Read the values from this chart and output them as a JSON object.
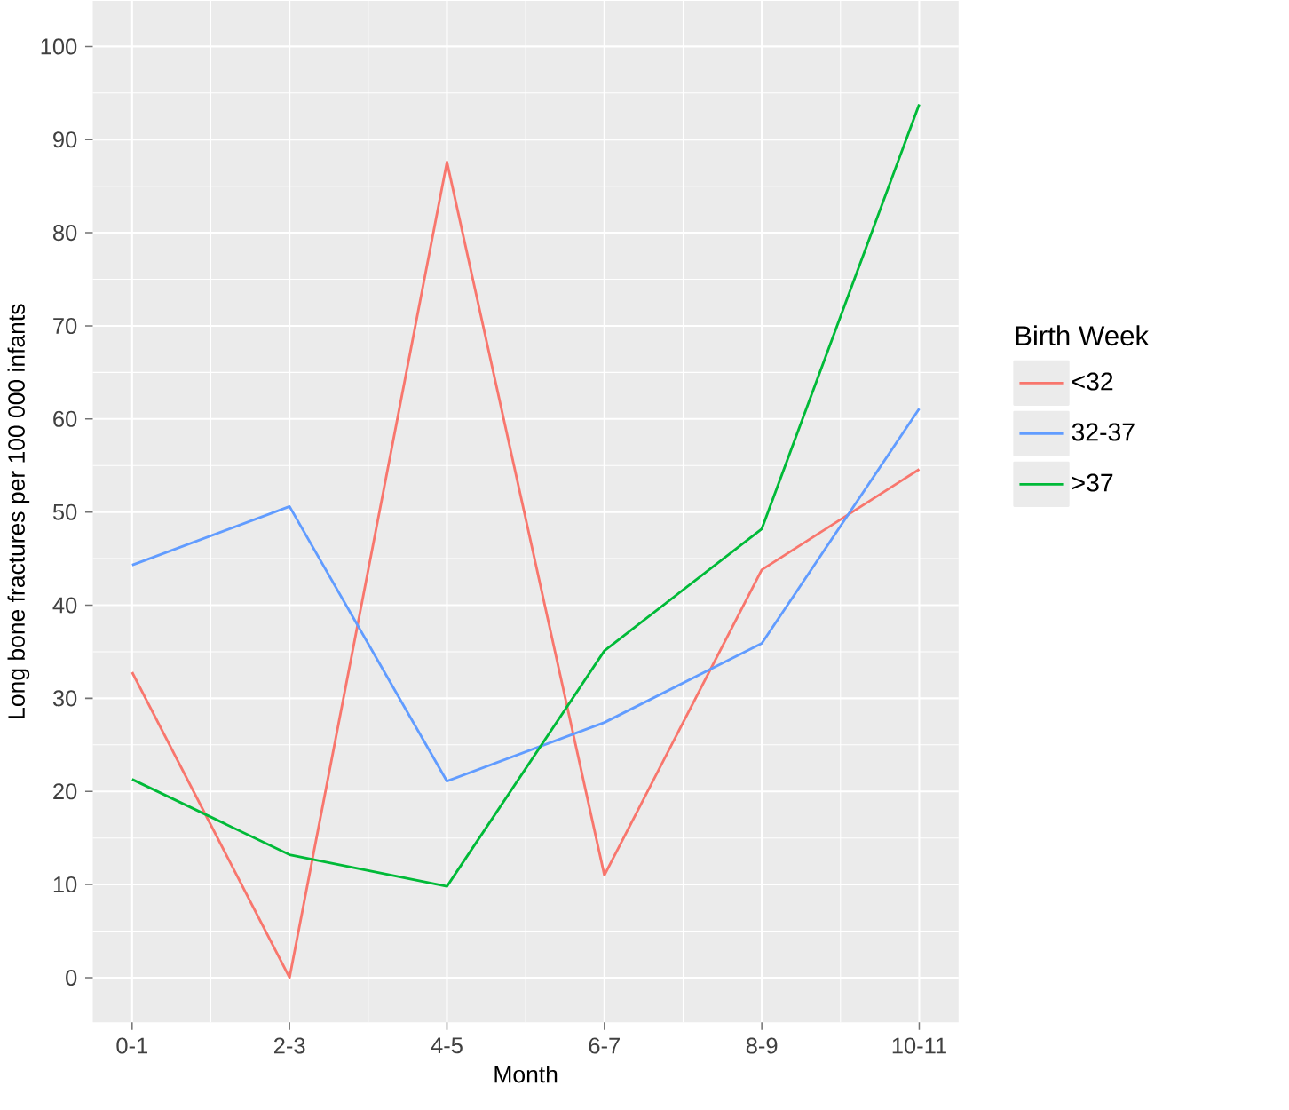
{
  "chart_data": {
    "type": "line",
    "xlabel": "Month",
    "ylabel": "Long bone fractures per 100 000 infants",
    "legend_title": "Birth Week",
    "categories": [
      "0-1",
      "2-3",
      "4-5",
      "6-7",
      "8-9",
      "10-11"
    ],
    "series": [
      {
        "name": "<32",
        "color": "#f8766d",
        "values": [
          32.8,
          0,
          87.6,
          11.0,
          43.8,
          54.6
        ]
      },
      {
        "name": "32-37",
        "color": "#619cff",
        "values": [
          44.3,
          50.6,
          21.1,
          27.4,
          35.9,
          61.1
        ]
      },
      {
        "name": ">37",
        "color": "#00ba38",
        "values": [
          21.3,
          13.2,
          9.8,
          35.1,
          48.2,
          93.8
        ]
      }
    ],
    "ylim": [
      -4.8,
      104.9
    ],
    "yticks": [
      0,
      10,
      20,
      30,
      40,
      50,
      60,
      70,
      80,
      90,
      100
    ],
    "grid": true,
    "legend": "right",
    "line_style": "solid",
    "marker": "none"
  }
}
